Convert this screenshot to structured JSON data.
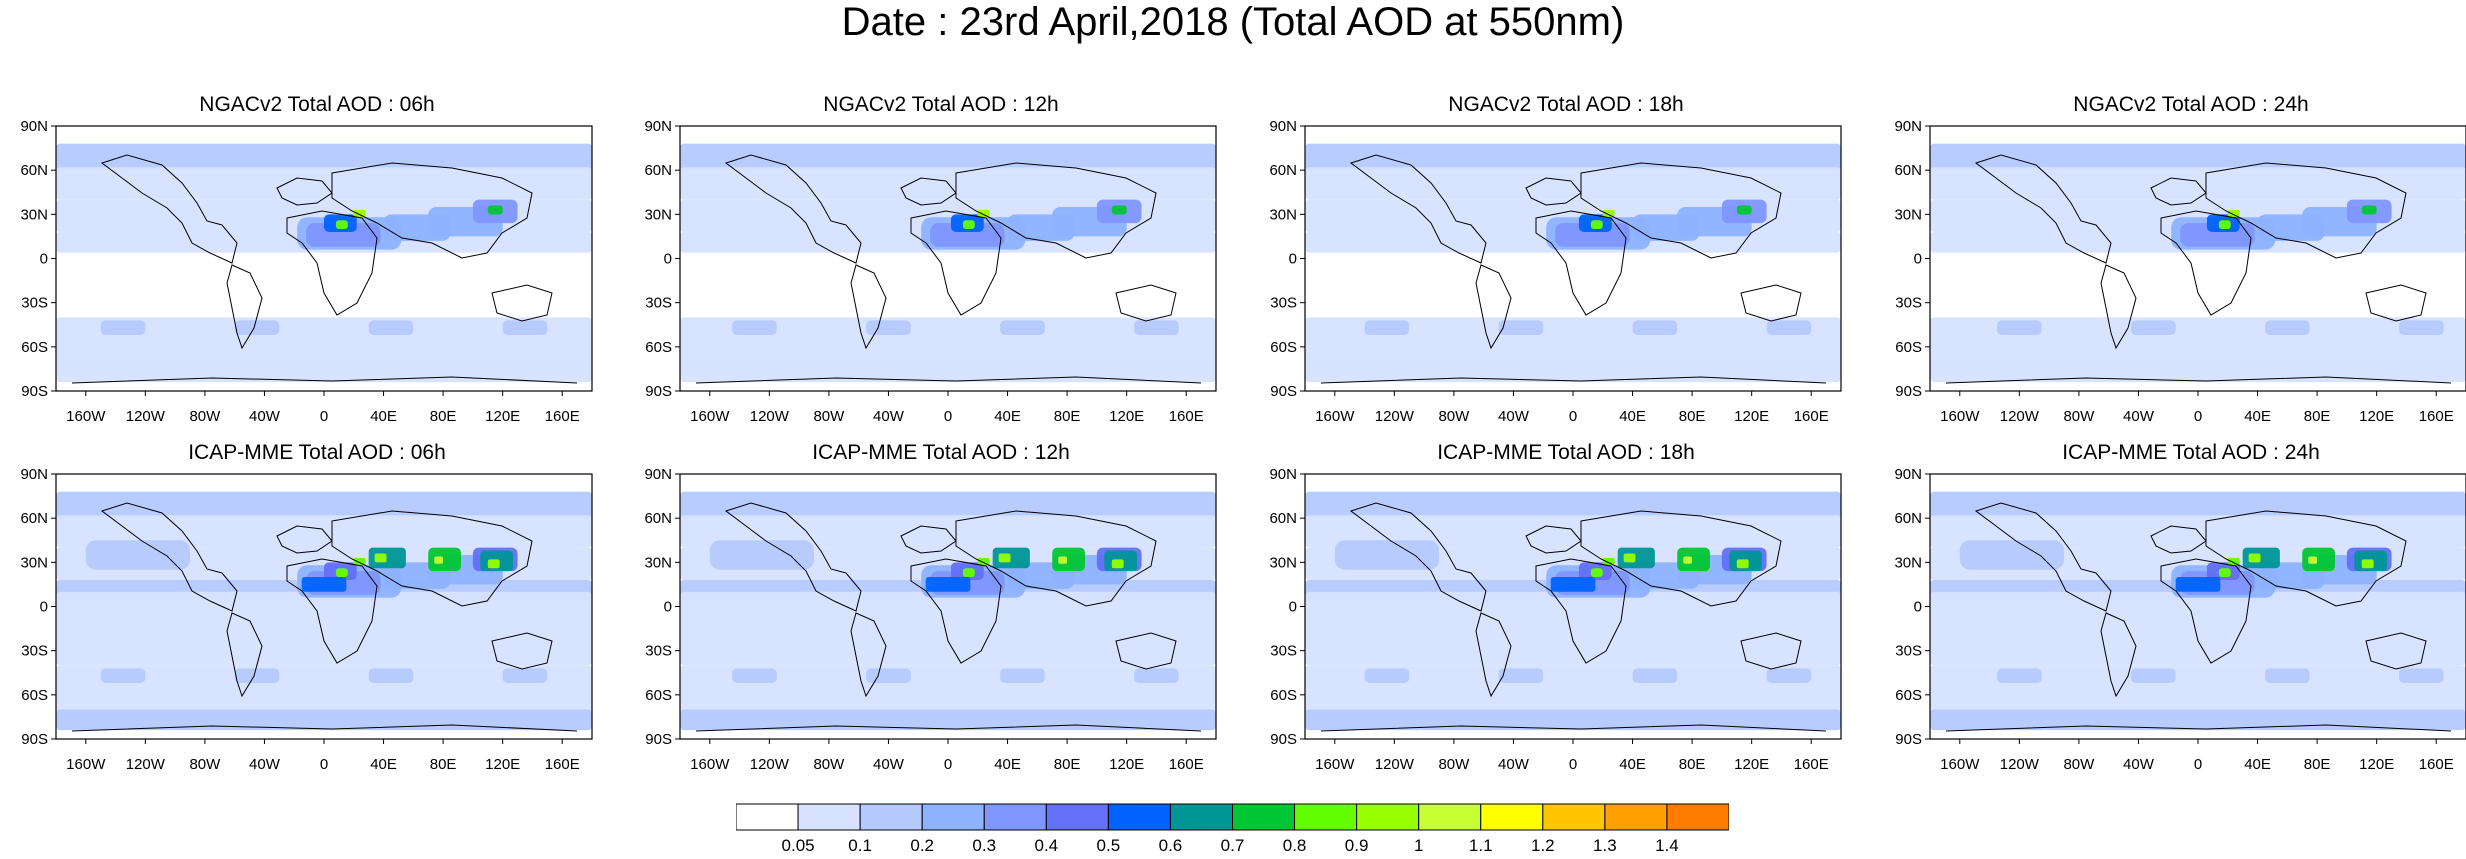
{
  "title": "Date : 23rd April,2018 (Total AOD at 550nm)",
  "panels": [
    {
      "title": "NGACv2 Total AOD : 06h"
    },
    {
      "title": "NGACv2 Total AOD : 12h"
    },
    {
      "title": "NGACv2 Total AOD : 18h"
    },
    {
      "title": "NGACv2 Total AOD : 24h"
    },
    {
      "title": "ICAP-MME Total AOD : 06h"
    },
    {
      "title": "ICAP-MME Total AOD : 12h"
    },
    {
      "title": "ICAP-MME Total AOD : 18h"
    },
    {
      "title": "ICAP-MME Total AOD : 24h"
    }
  ],
  "lat_labels": [
    "90N",
    "60N",
    "30N",
    "0",
    "30S",
    "60S",
    "90S"
  ],
  "lon_labels": [
    "160W",
    "120W",
    "80W",
    "40W",
    "0",
    "40E",
    "80E",
    "120E",
    "160E"
  ],
  "colorbar": {
    "labels": [
      "0.05",
      "0.1",
      "0.2",
      "0.3",
      "0.4",
      "0.5",
      "0.6",
      "0.7",
      "0.8",
      "0.9",
      "1",
      "1.1",
      "1.2",
      "1.3",
      "1.4"
    ],
    "colors": [
      "#ffffff",
      "#d6e2ff",
      "#b5c9ff",
      "#8eb2ff",
      "#7f96ff",
      "#6370f8",
      "#0063ff",
      "#009696",
      "#00c633",
      "#63ff00",
      "#96ff00",
      "#c6ff33",
      "#ffff00",
      "#ffc600",
      "#ffa000",
      "#ff7c00",
      "#ff1900"
    ]
  }
}
